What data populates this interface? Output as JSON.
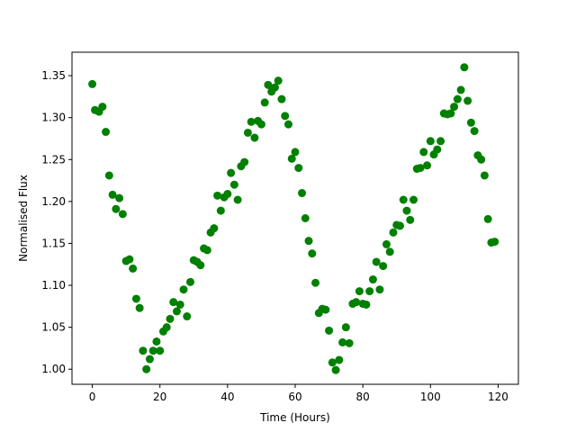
{
  "chart_data": {
    "type": "scatter",
    "title": "",
    "xlabel": "Time (Hours)",
    "ylabel": "Normalised Flux",
    "xlim": [
      -6,
      126
    ],
    "ylim": [
      0.982,
      1.378
    ],
    "xticks": [
      0,
      20,
      40,
      60,
      80,
      100,
      120
    ],
    "xtick_labels": [
      "0",
      "20",
      "40",
      "60",
      "80",
      "100",
      "120"
    ],
    "yticks": [
      1.0,
      1.05,
      1.1,
      1.15,
      1.2,
      1.25,
      1.3,
      1.35
    ],
    "ytick_labels": [
      "1.00",
      "1.05",
      "1.10",
      "1.15",
      "1.20",
      "1.25",
      "1.30",
      "1.35"
    ],
    "grid": false,
    "marker_color": "#008000",
    "series": [
      {
        "x": [
          0,
          0.8,
          2,
          3,
          4,
          5,
          6,
          7,
          8,
          9,
          10,
          11,
          12,
          13,
          14,
          15,
          16,
          17,
          18,
          19,
          20,
          21,
          22,
          23,
          24,
          25,
          26,
          27,
          28,
          29,
          30,
          31,
          32,
          33,
          34,
          35,
          36,
          37,
          38,
          39,
          40,
          41,
          42,
          43,
          44,
          45,
          46,
          47,
          48,
          49,
          50,
          51,
          52,
          53,
          54,
          55,
          56,
          57,
          58,
          59,
          60,
          61,
          62,
          63,
          64,
          65,
          66,
          67,
          68,
          69,
          70,
          71,
          72,
          73,
          74,
          75,
          76,
          77,
          78,
          79,
          80,
          81,
          82,
          83,
          84,
          85,
          86,
          87,
          88,
          89,
          90,
          91,
          92,
          93,
          94,
          95,
          96,
          97,
          98,
          99,
          100,
          101,
          102,
          103,
          104,
          105,
          106,
          107,
          108,
          109,
          110,
          111,
          112,
          113,
          114,
          115,
          116,
          117,
          118,
          119
        ],
        "y": [
          1.34,
          1.309,
          1.307,
          1.313,
          1.283,
          1.231,
          1.208,
          1.191,
          1.204,
          1.185,
          1.129,
          1.131,
          1.12,
          1.084,
          1.073,
          1.022,
          1.0,
          1.012,
          1.022,
          1.033,
          1.022,
          1.045,
          1.05,
          1.06,
          1.08,
          1.069,
          1.077,
          1.095,
          1.063,
          1.104,
          1.13,
          1.128,
          1.124,
          1.144,
          1.142,
          1.163,
          1.168,
          1.207,
          1.189,
          1.205,
          1.209,
          1.234,
          1.22,
          1.202,
          1.242,
          1.247,
          1.282,
          1.295,
          1.276,
          1.296,
          1.292,
          1.318,
          1.339,
          1.331,
          1.336,
          1.344,
          1.322,
          1.302,
          1.292,
          1.251,
          1.259,
          1.24,
          1.21,
          1.18,
          1.153,
          1.138,
          1.103,
          1.067,
          1.072,
          1.071,
          1.046,
          1.008,
          0.999,
          1.011,
          1.032,
          1.05,
          1.031,
          1.078,
          1.08,
          1.093,
          1.078,
          1.077,
          1.093,
          1.107,
          1.128,
          1.095,
          1.123,
          1.149,
          1.14,
          1.163,
          1.172,
          1.171,
          1.202,
          1.189,
          1.178,
          1.202,
          1.239,
          1.24,
          1.259,
          1.243,
          1.272,
          1.256,
          1.262,
          1.272,
          1.305,
          1.304,
          1.305,
          1.313,
          1.322,
          1.333,
          1.36,
          1.32,
          1.294,
          1.284,
          1.255,
          1.25,
          1.231,
          1.179,
          1.151,
          1.152
        ]
      }
    ]
  }
}
